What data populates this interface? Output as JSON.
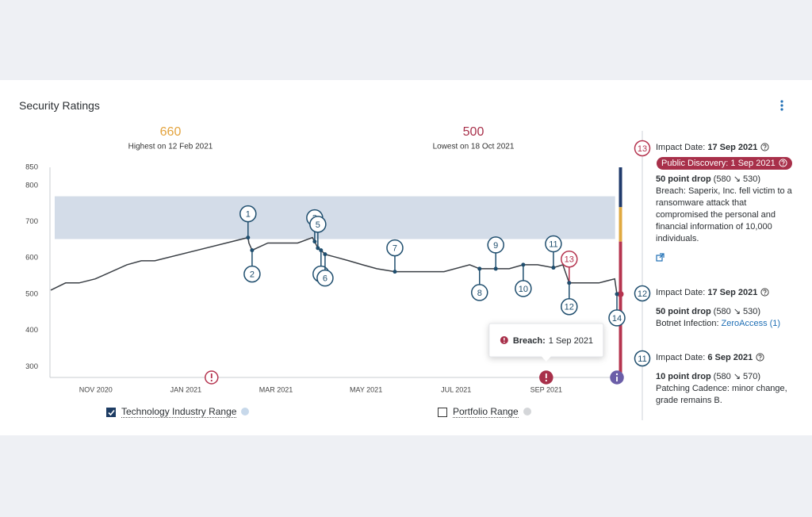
{
  "header": {
    "title": "Security Ratings"
  },
  "chart_data": {
    "type": "line",
    "color": "#3a3f45",
    "stats": [
      {
        "value": 660,
        "caption": "Highest on 12 Feb 2021",
        "color": "#e3a33d"
      },
      {
        "value": 500,
        "caption": "Lowest on 18 Oct 2021",
        "color": "#a8304a"
      }
    ],
    "x": [
      0,
      0.33,
      0.63,
      0.99,
      1.69,
      2.01,
      2.31,
      4.38,
      4.4,
      4.47,
      4.82,
      5.48,
      5.81,
      5.86,
      5.93,
      6.0,
      6.09,
      6.36,
      6.62,
      6.92,
      7.24,
      7.64,
      8.73,
      9.3,
      9.52,
      9.88,
      10.18,
      10.49,
      10.81,
      11.16,
      11.37,
      11.51,
      12.17,
      12.52,
      12.57
    ],
    "values": [
      511,
      531,
      531,
      542,
      581,
      592,
      592,
      656,
      641,
      621,
      641,
      641,
      656,
      645,
      627,
      621,
      610,
      601,
      592,
      581,
      570,
      562,
      562,
      581,
      570,
      570,
      570,
      581,
      581,
      573,
      581,
      531,
      531,
      542,
      500
    ],
    "xlim": [
      0,
      12.6
    ],
    "xticks": [
      {
        "value": 1,
        "label": "NOV 2020"
      },
      {
        "value": 3,
        "label": "JAN 2021"
      },
      {
        "value": 5,
        "label": "MAR 2021"
      },
      {
        "value": 7,
        "label": "MAY 2021"
      },
      {
        "value": 9,
        "label": "JUL 2021"
      },
      {
        "value": 11,
        "label": "SEP 2021"
      }
    ],
    "ylim": [
      270,
      850
    ],
    "yticks": [
      300,
      400,
      500,
      600,
      700,
      800,
      850
    ],
    "industry_range": {
      "low": 652,
      "high": 770,
      "color": "#d3dce8"
    },
    "grade_bands": [
      {
        "from": 740,
        "to": 850,
        "color": "#1f3a6b"
      },
      {
        "from": 645,
        "to": 740,
        "color": "#e0a940"
      },
      {
        "from": 270,
        "to": 645,
        "color": "#b5344f"
      }
    ],
    "events": [
      {
        "label": "1",
        "x": 4.38,
        "value": 656,
        "position": "above",
        "color": "#1f4e6e"
      },
      {
        "label": "2",
        "x": 4.47,
        "value": 621,
        "position": "below",
        "color": "#1f4e6e"
      },
      {
        "label": "3",
        "x": 5.86,
        "value": 645,
        "position": "above",
        "color": "#1f4e6e"
      },
      {
        "label": "5",
        "x": 5.93,
        "value": 627,
        "position": "above",
        "color": "#1f4e6e"
      },
      {
        "label": "4",
        "x": 6.0,
        "value": 621,
        "position": "below",
        "color": "#1f4e6e"
      },
      {
        "label": "6",
        "x": 6.09,
        "value": 610,
        "position": "below",
        "color": "#1f4e6e"
      },
      {
        "label": "7",
        "x": 7.64,
        "value": 562,
        "position": "above",
        "color": "#1f4e6e"
      },
      {
        "label": "8",
        "x": 9.52,
        "value": 570,
        "position": "below",
        "color": "#1f4e6e"
      },
      {
        "label": "9",
        "x": 9.88,
        "value": 570,
        "position": "above",
        "color": "#1f4e6e"
      },
      {
        "label": "10",
        "x": 10.49,
        "value": 581,
        "position": "below",
        "color": "#1f4e6e"
      },
      {
        "label": "11",
        "x": 11.16,
        "value": 573,
        "position": "above",
        "color": "#1f4e6e"
      },
      {
        "label": "13",
        "x": 11.51,
        "value": 531,
        "position": "above",
        "color": "#b5344f"
      },
      {
        "label": "12",
        "x": 11.51,
        "value": 531,
        "position": "below",
        "color": "#1f4e6e"
      },
      {
        "label": "14",
        "x": 12.57,
        "value": 500,
        "position": "below",
        "color": "#1f4e6e"
      }
    ],
    "alerts": [
      {
        "x": 3.57,
        "kind": "warning",
        "color": "#b5344f"
      },
      {
        "x": 11.0,
        "kind": "breach",
        "color": "#a8304a"
      },
      {
        "x": 12.57,
        "kind": "info",
        "color": "#6b5ea8"
      }
    ],
    "tooltip": {
      "label": "Breach:",
      "date": "1 Sep 2021"
    },
    "legend": [
      {
        "name": "Technology Industry Range",
        "checked": true,
        "color": "#c7d8ea"
      },
      {
        "name": "Portfolio Range",
        "checked": false,
        "color": "#d4d6d9"
      }
    ]
  },
  "panel": {
    "items": [
      {
        "number": "13",
        "color": "#b5344f",
        "impact_label": "Impact Date:",
        "impact_date": "17 Sep 2021",
        "badge": "Public Discovery: 1 Sep 2021",
        "drop": "50 point drop",
        "change": "(580 ↘ 530)",
        "description": "Breach: Saperix, Inc. fell victim to a ransomware attack that compromised the personal and financial information of 10,000 individuals."
      },
      {
        "number": "12",
        "color": "#1f4e6e",
        "impact_label": "Impact Date:",
        "impact_date": "17 Sep 2021",
        "drop": "50 point drop",
        "change": "(580 ↘ 530)",
        "description": "Botnet Infection:",
        "link": "ZeroAccess (1)"
      },
      {
        "number": "11",
        "color": "#1f4e6e",
        "impact_label": "Impact Date:",
        "impact_date": "6 Sep 2021",
        "drop": "10 point drop",
        "change": "(580 ↘ 570)",
        "description": "Patching Cadence: minor change, grade remains B."
      }
    ]
  }
}
